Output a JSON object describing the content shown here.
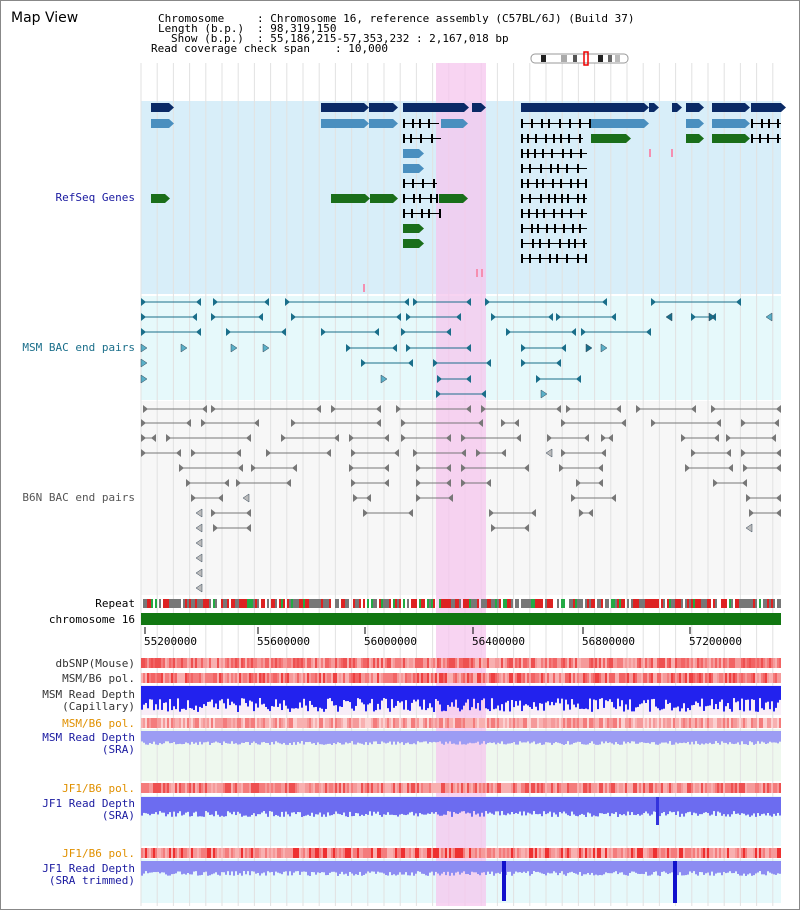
{
  "window": {
    "title": "Map View"
  },
  "header": {
    "chromosome_label": "Chromosome",
    "chromosome_value": ": Chromosome 16, reference assembly (C57BL/6J) (Build 37)",
    "length_label": "Length (b.p.)",
    "length_value": ": 98,319,150",
    "show_label": "Show (b.p.)",
    "show_value": ": 55,186,215-57,353,232 : 2,167,018 bp",
    "coverage_label": "Read coverage check span",
    "coverage_value": ": 10,000"
  },
  "tracks": {
    "refseq_label": "RefSeq Genes",
    "msm_bac_label": "MSM BAC end pairs",
    "b6n_bac_label": "B6N BAC end pairs",
    "repeat_label": "Repeat",
    "chromosome_label": "chromosome 16",
    "dbsnp_label": "dbSNP(Mouse)",
    "msm_b6_pol_label": "MSM/B6 pol.",
    "msm_read_depth_cap_line1": "MSM Read Depth",
    "msm_read_depth_cap_line2": "(Capillary)",
    "msm_b6_pol2_label": "MSM/B6 pol.",
    "msm_read_depth_sra_line1": "MSM Read Depth",
    "msm_read_depth_sra_line2": "(SRA)",
    "jf1_b6_pol_label": "JF1/B6 pol.",
    "jf1_read_depth_sra_line1": "JF1 Read Depth",
    "jf1_read_depth_sra_line2": "(SRA)",
    "jf1_b6_pol2_label": "JF1/B6 pol.",
    "jf1_read_depth_trim_line1": "JF1 Read Depth",
    "jf1_read_depth_trim_line2": "(SRA trimmed)"
  },
  "axis": {
    "ticks": [
      "55200000",
      "55600000",
      "56000000",
      "56400000",
      "56800000",
      "57200000"
    ]
  },
  "colors": {
    "refseq_dark": "#0a2a66",
    "refseq_mid": "#4a8fbf",
    "refseq_green": "#1a6e1a",
    "msm_bac": "#1a6e8a",
    "b6n_bac": "#777777",
    "chromosome_bar": "#117711",
    "depth_blue": "#2222ee",
    "highlight": "#f6c6ee",
    "label_blue": "#1a1aa0",
    "label_orange": "#e09000"
  }
}
